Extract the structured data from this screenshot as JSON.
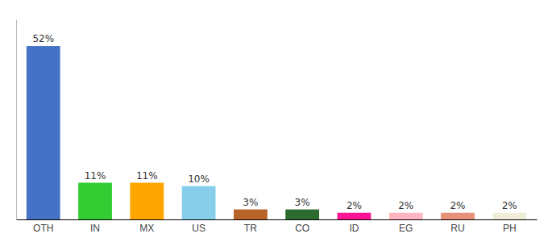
{
  "chart_data": {
    "type": "bar",
    "categories": [
      "OTH",
      "IN",
      "MX",
      "US",
      "TR",
      "CO",
      "ID",
      "EG",
      "RU",
      "PH"
    ],
    "values": [
      52,
      11,
      11,
      10,
      3,
      3,
      2,
      2,
      2,
      2
    ],
    "value_labels": [
      "52%",
      "11%",
      "11%",
      "10%",
      "3%",
      "3%",
      "2%",
      "2%",
      "2%",
      "2%"
    ],
    "colors": [
      "#4472C4",
      "#33CC33",
      "#FFA500",
      "#87CEEB",
      "#B8632A",
      "#2E6B2E",
      "#FF1493",
      "#FFB6C1",
      "#E8907A",
      "#F0EDD8"
    ],
    "ylim": [
      0,
      60
    ],
    "data_labels": true,
    "tick_labels": "x"
  }
}
